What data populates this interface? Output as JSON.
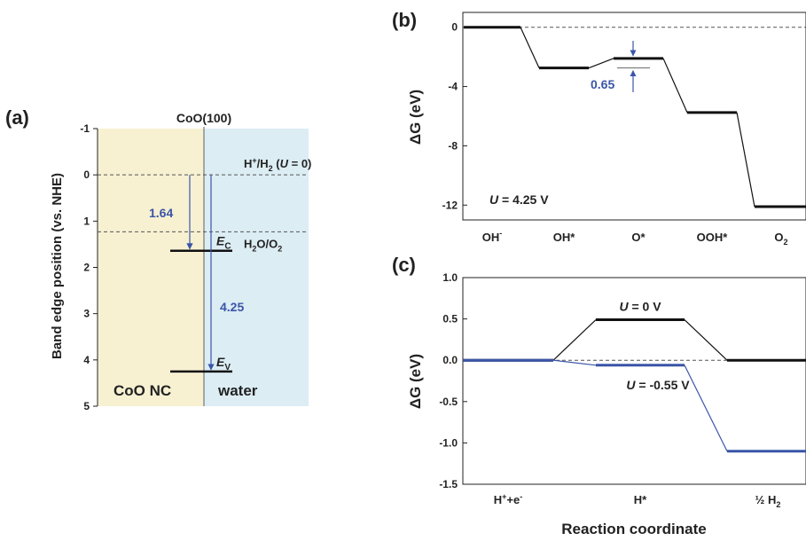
{
  "colors": {
    "accent": "#3a55a8",
    "black": "#111111",
    "semiconductor_bg": "#f7f1d2",
    "water_bg": "#dcedf4"
  },
  "chart_data": [
    {
      "panel": "(a)",
      "type": "band_diagram",
      "title": "CoO(100)",
      "ylabel": "Band edge position (vs. NHE)",
      "ylim": [
        -1,
        5
      ],
      "y_inverted": true,
      "yticks": [
        -1,
        0,
        1,
        2,
        3,
        4,
        5
      ],
      "regions": [
        "CoO NC",
        "water"
      ],
      "levels": [
        {
          "name": "H⁺/H₂ (U = 0)",
          "value": 0,
          "style": "dashed"
        },
        {
          "name": "H₂O/O₂",
          "value": 1.23,
          "style": "dashed"
        },
        {
          "name": "E_C",
          "value": 1.64,
          "style": "solid"
        },
        {
          "name": "E_V",
          "value": 4.25,
          "style": "solid"
        }
      ],
      "arrows": [
        {
          "label": "1.64",
          "from": 0,
          "to": 1.64
        },
        {
          "label": "4.25",
          "from": 0,
          "to": 4.25
        }
      ]
    },
    {
      "panel": "(b)",
      "type": "line",
      "ylabel": "ΔG (eV)",
      "categories": [
        "OH-",
        "OH*",
        "O*",
        "OOH*",
        "O2"
      ],
      "series": [
        {
          "values": [
            0,
            -2.75,
            -2.1,
            -5.75,
            -12.1
          ]
        }
      ],
      "ylim": [
        -13,
        1
      ],
      "yticks": [
        0,
        -4,
        -8,
        -12
      ],
      "annotations": [
        "U = 4.25 V",
        "0.65"
      ],
      "reference_line": 0
    },
    {
      "panel": "(c)",
      "type": "line",
      "ylabel": "ΔG (eV)",
      "xlabel": "Reaction coordinate",
      "categories": [
        "H++e-",
        "H*",
        "½ H2"
      ],
      "series": [
        {
          "name": "U = 0 V",
          "values": [
            0,
            0.49,
            0
          ],
          "color": "#111111"
        },
        {
          "name": "U = -0.55 V",
          "values": [
            0,
            -0.06,
            -1.1
          ],
          "color": "#3a55a8"
        }
      ],
      "ylim": [
        -1.5,
        1.0
      ],
      "yticks": [
        1.0,
        0.5,
        0.0,
        -0.5,
        -1.0,
        -1.5
      ],
      "reference_line": 0
    }
  ]
}
